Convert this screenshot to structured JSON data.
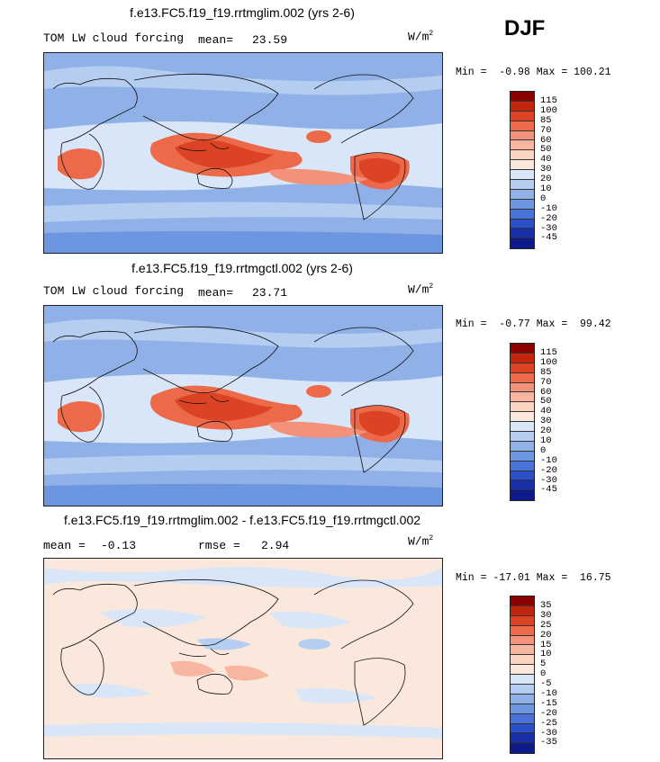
{
  "season": "DJF",
  "units_base": "W/m",
  "units_exp": "2",
  "panels": [
    {
      "title": "f.e13.FC5.f19_f19.rrtmglim.002 (yrs 2-6)",
      "variable": "TOM LW cloud forcing",
      "mean_label": "mean=",
      "mean_value": "23.59",
      "minmax": "Min =  -0.98 Max = 100.21"
    },
    {
      "title": "f.e13.FC5.f19_f19.rrtmgctl.002 (yrs 2-6)",
      "variable": "TOM LW cloud forcing",
      "mean_label": "mean=",
      "mean_value": "23.71",
      "minmax": "Min =  -0.77 Max =  99.42"
    },
    {
      "title": "f.e13.FC5.f19_f19.rrtmglim.002 - f.e13.FC5.f19_f19.rrtmgctl.002",
      "mean_label": "mean =",
      "mean_value": "-0.13",
      "rmse_label": "rmse =",
      "rmse_value": "2.94",
      "minmax": "Min = -17.01 Max =  16.75"
    }
  ],
  "colorbar_abs": {
    "labels": [
      "115",
      "100",
      "85",
      "70",
      "60",
      "50",
      "40",
      "30",
      "20",
      "10",
      "0",
      "-10",
      "-20",
      "-30",
      "-45"
    ],
    "colors": [
      "#8b0000",
      "#c1260d",
      "#dc4325",
      "#ec6a49",
      "#f3927a",
      "#f8b59f",
      "#fcd3c1",
      "#fbe8dc",
      "#d9e6f7",
      "#b4cdf0",
      "#8fb1e8",
      "#6d96e0",
      "#4a72d8",
      "#2a4fc7",
      "#1730a8",
      "#0c1a8a"
    ]
  },
  "colorbar_diff": {
    "labels": [
      "35",
      "30",
      "25",
      "20",
      "15",
      "10",
      "5",
      "0",
      "-5",
      "-10",
      "-15",
      "-20",
      "-25",
      "-30",
      "-35"
    ],
    "colors": [
      "#8b0000",
      "#c1260d",
      "#dc4325",
      "#ec6a49",
      "#f3927a",
      "#f8b59f",
      "#fcd3c1",
      "#fbe8dc",
      "#d9e6f7",
      "#b4cdf0",
      "#8fb1e8",
      "#6d96e0",
      "#4a72d8",
      "#2a4fc7",
      "#1730a8",
      "#0c1a8a"
    ]
  }
}
